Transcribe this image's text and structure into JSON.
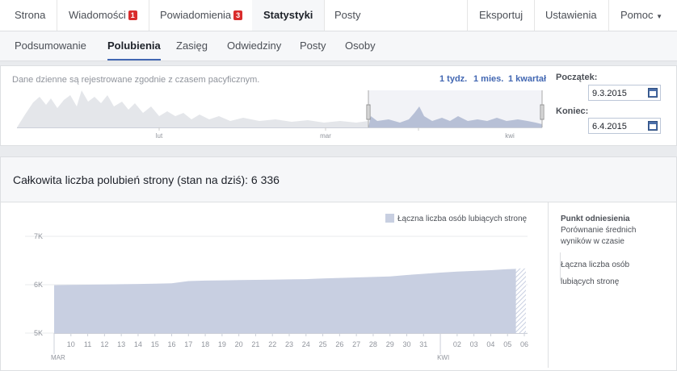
{
  "top_nav": {
    "items": [
      "Strona",
      "Wiadomości",
      "Powiadomienia",
      "Statystyki",
      "Posty"
    ],
    "badges": {
      "messages": "1",
      "notifications": "3"
    },
    "right_items": [
      "Eksportuj",
      "Ustawienia",
      "Pomoc"
    ]
  },
  "sub_nav": {
    "items": [
      "Podsumowanie",
      "Polubienia",
      "Zasięg",
      "Odwiedziny",
      "Posty",
      "Osoby"
    ]
  },
  "range": {
    "note": "Dane dzienne są rejestrowane zgodnie z czasem pacyficznym.",
    "presets": [
      "1 tydz.",
      "1 mies.",
      "1 kwartał"
    ],
    "overview_months": [
      "lut",
      "mar",
      "kwi"
    ],
    "start_label": "Początek:",
    "start": "9.3.2015",
    "end_label": "Koniec:",
    "end": "6.4.2015"
  },
  "total": {
    "text": "Całkowita liczba polubień strony (stan na dziś): 6 336"
  },
  "chart_data": {
    "type": "area",
    "categories": [
      null,
      "10",
      "11",
      "12",
      "13",
      "14",
      "15",
      "16",
      "17",
      "18",
      "19",
      "20",
      "21",
      "22",
      "23",
      "24",
      "25",
      "26",
      "27",
      "28",
      "29",
      "30",
      "31",
      null,
      "02",
      "03",
      "04",
      "05",
      "06"
    ],
    "month_labels": [
      "MAR",
      "KWI"
    ],
    "series": [
      {
        "name": "Łączna liczba osób lubiących stronę",
        "color": "#c8cfe1",
        "values": [
          5990,
          5995,
          6000,
          6005,
          6010,
          6015,
          6020,
          6030,
          6075,
          6085,
          6090,
          6095,
          6100,
          6105,
          6110,
          6115,
          6130,
          6140,
          6150,
          6160,
          6170,
          6200,
          6225,
          6250,
          6270,
          6285,
          6300,
          6320,
          6336
        ]
      }
    ],
    "ylim": [
      5000,
      7000
    ],
    "yticks": [
      {
        "value": 5000,
        "label": "5K"
      },
      {
        "value": 6000,
        "label": "6K"
      },
      {
        "value": 7000,
        "label": "7K"
      }
    ],
    "grid": true,
    "legend": "top-right"
  },
  "side_panel": {
    "title": "Punkt odniesienia",
    "subtitle": "Porównanie średnich wyników w czasie",
    "item": "Łączna liczba osób lubiących stronę"
  }
}
